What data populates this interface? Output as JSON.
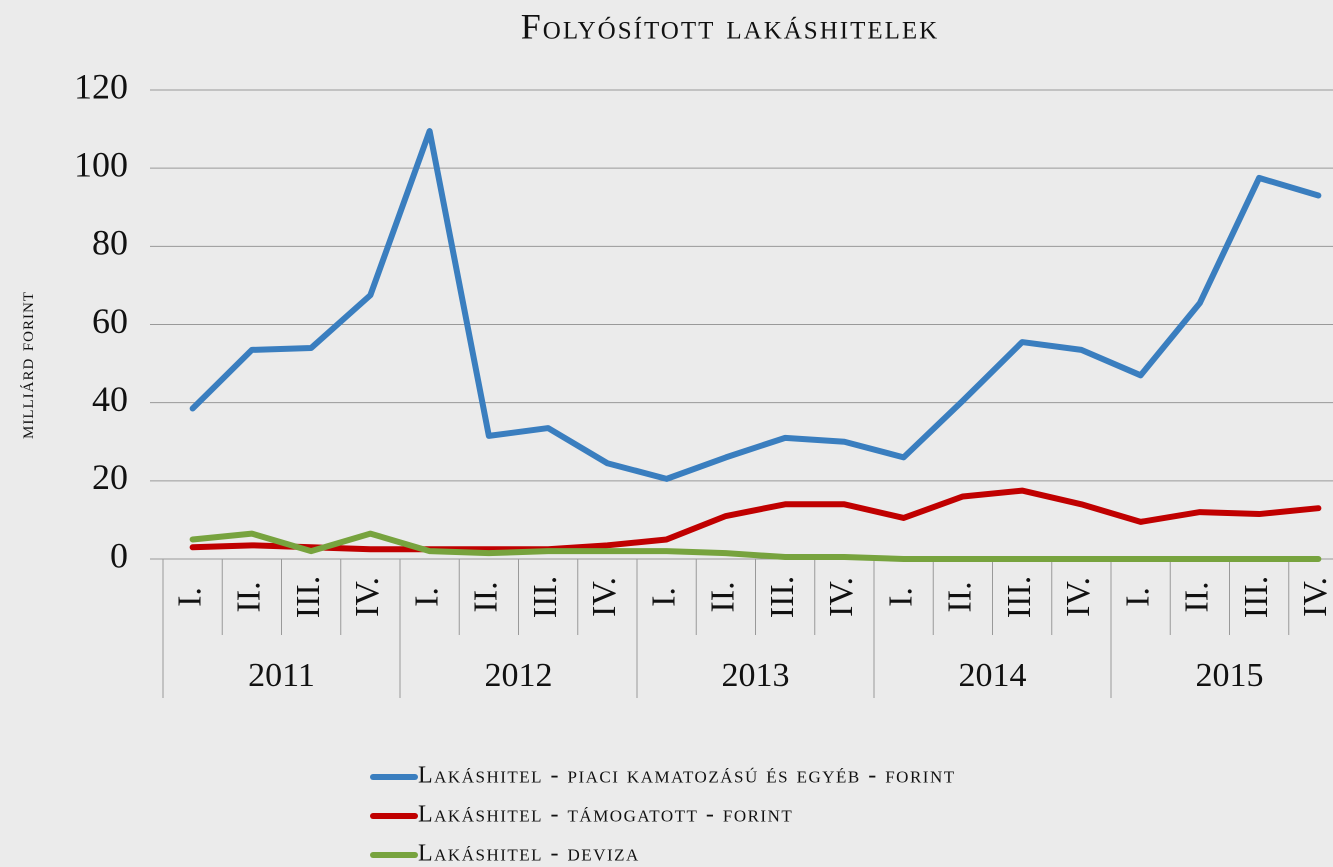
{
  "chart_data": {
    "type": "line",
    "title": "Folyósított lakáshitelek",
    "y_label": "milliárd forint",
    "categories": [
      "I.",
      "II.",
      "III.",
      "IV.",
      "I.",
      "II.",
      "III.",
      "IV.",
      "I.",
      "II.",
      "III.",
      "IV.",
      "I.",
      "II.",
      "III.",
      "IV.",
      "I.",
      "II.",
      "III.",
      "IV."
    ],
    "groups": [
      "2011",
      "2012",
      "2013",
      "2014",
      "2015"
    ],
    "series": [
      {
        "name": "Lakáshitel - piaci kamatozású és egyéb - forint",
        "color": "#3a7ebf",
        "values": [
          38.5,
          53.5,
          54,
          67.5,
          109.5,
          31.5,
          33.5,
          24.5,
          20.5,
          26,
          31,
          30,
          26,
          40.5,
          55.5,
          53.5,
          47,
          65.5,
          97.5,
          93
        ]
      },
      {
        "name": "Lakáshitel - támogatott - forint",
        "color": "#c00000",
        "values": [
          3,
          3.5,
          3,
          2.5,
          2.5,
          2.5,
          2.5,
          3.5,
          5,
          11,
          14,
          14,
          10.5,
          16,
          17.5,
          14,
          9.5,
          12,
          11.5,
          13
        ]
      },
      {
        "name": "Lakáshitel - deviza",
        "color": "#77a33e",
        "values": [
          5,
          6.5,
          2,
          6.5,
          2,
          1.5,
          2,
          2,
          2,
          1.5,
          0.5,
          0.5,
          0,
          0,
          0,
          0,
          0,
          0,
          0,
          0
        ]
      }
    ],
    "ylim": [
      0,
      120
    ],
    "yticks": [
      0,
      20,
      40,
      60,
      80,
      100,
      120
    ],
    "grid": true
  }
}
